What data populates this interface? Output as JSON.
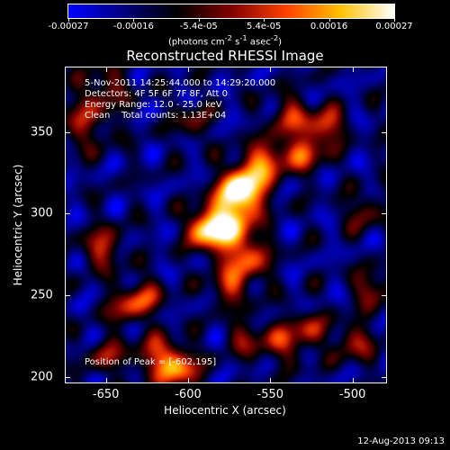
{
  "colorbar": {
    "tick_labels": [
      "-0.00027",
      "-0.00016",
      "-5.4e-05",
      "5.4e-05",
      "0.00016",
      "0.00027"
    ],
    "units_html": "(photons cm<sup>-2</sup> s<sup>-1</sup> asec<sup>-2</sup>)",
    "colors": [
      "#0000ff",
      "#000080",
      "#000000",
      "#800000",
      "#ff4000",
      "#ffc000",
      "#ffffff"
    ]
  },
  "title": "Reconstructed RHESSI Image",
  "info": {
    "time": "5-Nov-2011 14:25:44.000 to 14:29:20.000",
    "detectors": "Detectors: 4F 5F 6F 7F 8F, Att 0",
    "energy": "Energy Range: 12.0 - 25.0 keV",
    "clean": "Clean    Total counts: 1.13E+04",
    "peak": "Position of Peak = [-602,195]"
  },
  "x_axis": {
    "title": "Heliocentric X (arcsec)",
    "tick_labels": [
      "-650",
      "-600",
      "-550",
      "-500"
    ]
  },
  "y_axis": {
    "title": "Heliocentric Y (arcsec)",
    "tick_labels": [
      "200",
      "250",
      "300",
      "350"
    ]
  },
  "timestamp": "12-Aug-2013 09:13"
}
